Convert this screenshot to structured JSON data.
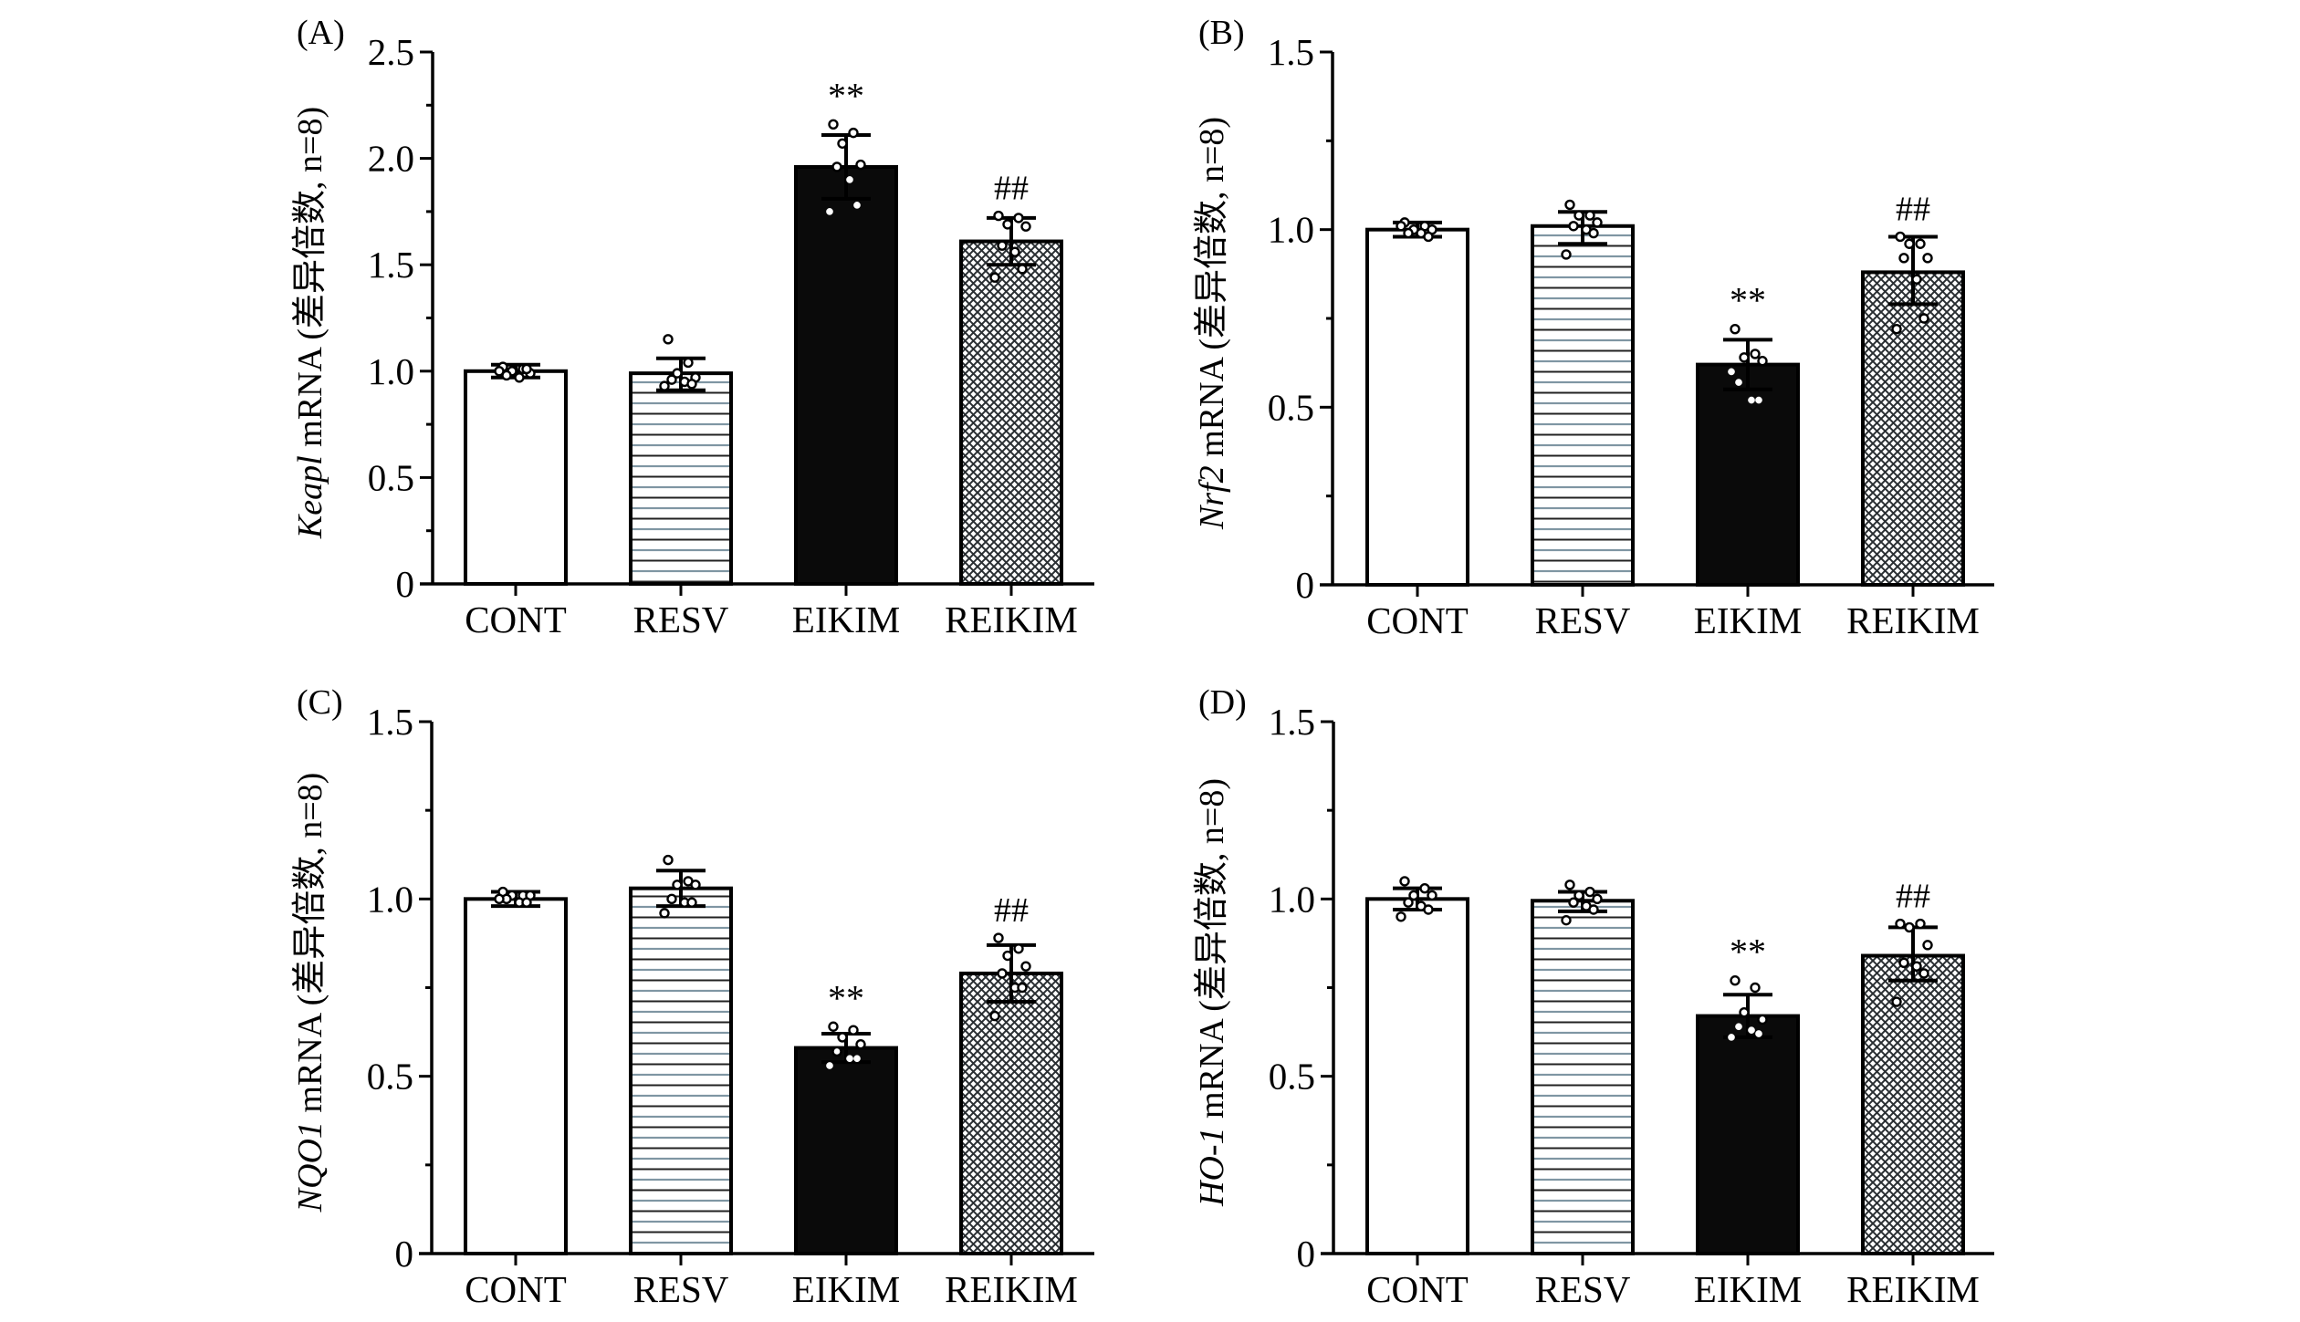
{
  "figure": {
    "colors": {
      "axis": "#000000",
      "cont_fill": "#ffffff",
      "resv_line_dark": "#222222",
      "resv_line_light": "#7f96a3",
      "eikim_fill": "#0a0a0a",
      "reikim_hatch": "#2a2f33",
      "point_stroke_light_bg": "#000000",
      "point_fill_dark_bg": "#ffffff"
    }
  },
  "chart_data": [
    {
      "panel_label": "(A)",
      "type": "bar",
      "title": "",
      "ylabel_gene": "Keapl",
      "ylabel_rest": " mRNA (差异倍数, n=8)",
      "xlabel": "",
      "categories": [
        "CONT",
        "RESV",
        "EIKIM",
        "REIKIM"
      ],
      "fills": [
        "open",
        "horizontal-lines",
        "solid-black",
        "crosshatch"
      ],
      "values": [
        1.0,
        0.99,
        1.96,
        1.61
      ],
      "error_low": [
        0.97,
        0.91,
        1.81,
        1.5
      ],
      "error_high": [
        1.03,
        1.06,
        2.11,
        1.72
      ],
      "points": [
        [
          1.02,
          1.01,
          1.0,
          0.99,
          0.98,
          0.97,
          1.01,
          1.0
        ],
        [
          1.15,
          1.04,
          0.99,
          0.97,
          0.96,
          0.95,
          0.94,
          0.93
        ],
        [
          2.16,
          2.12,
          2.07,
          1.97,
          1.96,
          1.9,
          1.78,
          1.75
        ],
        [
          1.73,
          1.72,
          1.69,
          1.68,
          1.59,
          1.56,
          1.48,
          1.44
        ]
      ],
      "annotations": [
        "",
        "",
        "**",
        "##"
      ],
      "ylim": [
        0,
        2.5
      ],
      "yticks": [
        0,
        0.5,
        1.0,
        1.5,
        2.0,
        2.5
      ],
      "ytick_labels": [
        "0",
        "0.5",
        "1.0",
        "1.5",
        "2.0",
        "2.5"
      ],
      "grid": false,
      "legend": "none"
    },
    {
      "panel_label": "(B)",
      "type": "bar",
      "title": "",
      "ylabel_gene": "Nrf2",
      "ylabel_rest": " mRNA (差异倍数, n=8)",
      "xlabel": "",
      "categories": [
        "CONT",
        "RESV",
        "EIKIM",
        "REIKIM"
      ],
      "fills": [
        "open",
        "horizontal-lines",
        "solid-black",
        "crosshatch"
      ],
      "values": [
        1.0,
        1.01,
        0.62,
        0.88
      ],
      "error_low": [
        0.98,
        0.96,
        0.55,
        0.79
      ],
      "error_high": [
        1.02,
        1.05,
        0.69,
        0.98
      ],
      "points": [
        [
          1.02,
          1.01,
          1.0,
          1.0,
          0.99,
          0.99,
          0.98,
          1.01
        ],
        [
          1.07,
          1.04,
          1.04,
          1.02,
          1.01,
          1.0,
          0.99,
          0.93
        ],
        [
          0.72,
          0.65,
          0.64,
          0.63,
          0.57,
          0.52,
          0.52,
          0.6
        ],
        [
          0.98,
          0.96,
          0.96,
          0.92,
          0.92,
          0.86,
          0.75,
          0.72
        ]
      ],
      "annotations": [
        "",
        "",
        "**",
        "##"
      ],
      "ylim": [
        0,
        1.5
      ],
      "yticks": [
        0,
        0.5,
        1.0,
        1.5
      ],
      "ytick_labels": [
        "0",
        "0.5",
        "1.0",
        "1.5"
      ],
      "grid": false,
      "legend": "none"
    },
    {
      "panel_label": "(C)",
      "type": "bar",
      "title": "",
      "ylabel_gene": "NQO1",
      "ylabel_rest": " mRNA (差异倍数, n=8)",
      "xlabel": "",
      "categories": [
        "CONT",
        "RESV",
        "EIKIM",
        "REIKIM"
      ],
      "fills": [
        "open",
        "horizontal-lines",
        "solid-black",
        "crosshatch"
      ],
      "values": [
        1.0,
        1.03,
        0.58,
        0.79
      ],
      "error_low": [
        0.98,
        0.98,
        0.54,
        0.71
      ],
      "error_high": [
        1.02,
        1.08,
        0.62,
        0.87
      ],
      "points": [
        [
          1.02,
          1.01,
          1.01,
          1.01,
          1.0,
          0.99,
          0.99,
          1.0
        ],
        [
          1.11,
          1.05,
          1.04,
          1.04,
          1.0,
          0.99,
          0.99,
          0.96
        ],
        [
          0.64,
          0.63,
          0.61,
          0.59,
          0.57,
          0.55,
          0.55,
          0.53
        ],
        [
          0.89,
          0.86,
          0.84,
          0.81,
          0.79,
          0.75,
          0.75,
          0.67
        ]
      ],
      "annotations": [
        "",
        "",
        "**",
        "##"
      ],
      "ylim": [
        0,
        1.5
      ],
      "yticks": [
        0,
        0.5,
        1.0,
        1.5
      ],
      "ytick_labels": [
        "0",
        "0.5",
        "1.0",
        "1.5"
      ],
      "grid": false,
      "legend": "none"
    },
    {
      "panel_label": "(D)",
      "type": "bar",
      "title": "",
      "ylabel_gene": "HO-1",
      "ylabel_rest": " mRNA (差异倍数, n=8)",
      "xlabel": "",
      "categories": [
        "CONT",
        "RESV",
        "EIKIM",
        "REIKIM"
      ],
      "fills": [
        "open",
        "horizontal-lines",
        "solid-black",
        "crosshatch"
      ],
      "values": [
        1.0,
        0.995,
        0.67,
        0.84
      ],
      "error_low": [
        0.97,
        0.965,
        0.61,
        0.77
      ],
      "error_high": [
        1.03,
        1.02,
        0.73,
        0.92
      ],
      "points": [
        [
          1.05,
          1.03,
          1.01,
          1.01,
          0.99,
          0.98,
          0.97,
          0.95
        ],
        [
          1.04,
          1.02,
          1.01,
          1.0,
          0.99,
          0.98,
          0.97,
          0.94
        ],
        [
          0.77,
          0.75,
          0.68,
          0.66,
          0.64,
          0.63,
          0.62,
          0.61
        ],
        [
          0.93,
          0.93,
          0.92,
          0.87,
          0.82,
          0.81,
          0.79,
          0.71
        ]
      ],
      "annotations": [
        "",
        "",
        "**",
        "##"
      ],
      "ylim": [
        0,
        1.5
      ],
      "yticks": [
        0,
        0.5,
        1.0,
        1.5
      ],
      "ytick_labels": [
        "0",
        "0.5",
        "1.0",
        "1.5"
      ],
      "grid": false,
      "legend": "none"
    }
  ]
}
